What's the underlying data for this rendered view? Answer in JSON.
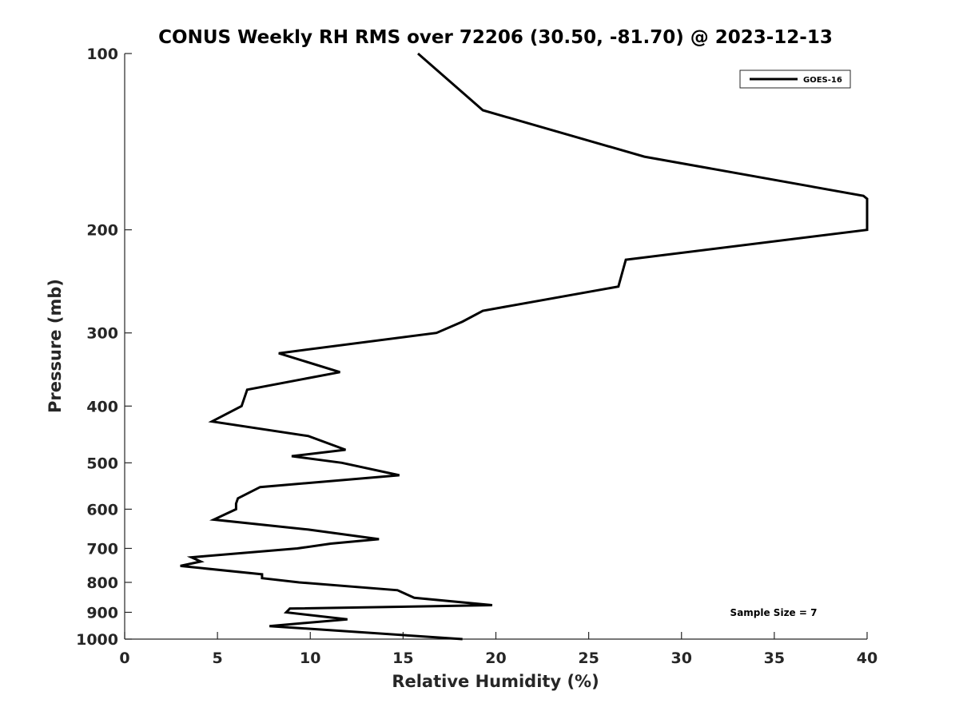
{
  "chart_data": {
    "type": "line",
    "title": "CONUS Weekly RH RMS over 72206 (30.50, -81.70) @ 2023-12-13",
    "xlabel": "Relative Humidity (%)",
    "ylabel": "Pressure (mb)",
    "xlim": [
      0,
      40
    ],
    "ylim": [
      100,
      1000
    ],
    "y_scale": "log",
    "y_reversed": true,
    "grid": false,
    "legend_position": "top-right",
    "x_ticks": [
      "0",
      "5",
      "10",
      "15",
      "20",
      "25",
      "30",
      "35",
      "40"
    ],
    "y_ticks": [
      "100",
      "200",
      "300",
      "400",
      "500",
      "600",
      "700",
      "800",
      "900",
      "1000"
    ],
    "annotation": "Sample Size = 7",
    "series": [
      {
        "name": "GOES-16",
        "color": "#000000",
        "points": [
          [
            15.8,
            100
          ],
          [
            19.3,
            125
          ],
          [
            28.0,
            150
          ],
          [
            39.8,
            175
          ],
          [
            40.0,
            177
          ],
          [
            40.0,
            200
          ],
          [
            27.0,
            225
          ],
          [
            26.6,
            250
          ],
          [
            19.3,
            275
          ],
          [
            18.2,
            287
          ],
          [
            16.8,
            300
          ],
          [
            8.3,
            325
          ],
          [
            11.6,
            350
          ],
          [
            6.6,
            375
          ],
          [
            6.3,
            400
          ],
          [
            4.7,
            425
          ],
          [
            9.9,
            450
          ],
          [
            11.9,
            475
          ],
          [
            9.0,
            487
          ],
          [
            11.7,
            500
          ],
          [
            14.8,
            525
          ],
          [
            7.3,
            550
          ],
          [
            6.1,
            575
          ],
          [
            6.0,
            587
          ],
          [
            6.0,
            600
          ],
          [
            4.8,
            625
          ],
          [
            9.9,
            650
          ],
          [
            13.7,
            675
          ],
          [
            11.1,
            687
          ],
          [
            9.3,
            700
          ],
          [
            3.6,
            725
          ],
          [
            4.1,
            737
          ],
          [
            3.0,
            750
          ],
          [
            7.4,
            775
          ],
          [
            7.4,
            787
          ],
          [
            9.4,
            800
          ],
          [
            14.7,
            825
          ],
          [
            15.6,
            850
          ],
          [
            19.8,
            875
          ],
          [
            8.9,
            887
          ],
          [
            8.7,
            900
          ],
          [
            12.0,
            925
          ],
          [
            7.8,
            950
          ],
          [
            18.2,
            1000
          ]
        ]
      }
    ]
  }
}
